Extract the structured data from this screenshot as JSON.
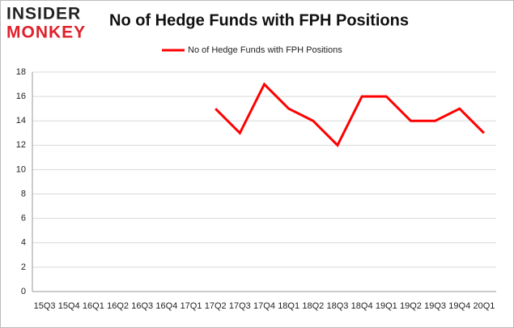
{
  "logo": {
    "line1": "INSIDER",
    "line2": "MONKEY"
  },
  "chart_data": {
    "type": "line",
    "title": "No of Hedge Funds with FPH Positions",
    "categories": [
      "15Q3",
      "15Q4",
      "16Q1",
      "16Q2",
      "16Q3",
      "16Q4",
      "17Q1",
      "17Q2",
      "17Q3",
      "17Q4",
      "18Q1",
      "18Q2",
      "18Q3",
      "18Q4",
      "19Q1",
      "19Q2",
      "19Q3",
      "19Q4",
      "20Q1"
    ],
    "series": [
      {
        "name": "No of Hedge Funds with FPH Positions",
        "color": "#ff0000",
        "values": [
          null,
          null,
          null,
          null,
          null,
          null,
          null,
          15,
          13,
          17,
          15,
          14,
          12,
          16,
          16,
          14,
          14,
          15,
          13
        ]
      }
    ],
    "ylim": [
      0,
      18
    ],
    "yticks": [
      0,
      2,
      4,
      6,
      8,
      10,
      12,
      14,
      16,
      18
    ],
    "grid": true,
    "legend": "top"
  }
}
